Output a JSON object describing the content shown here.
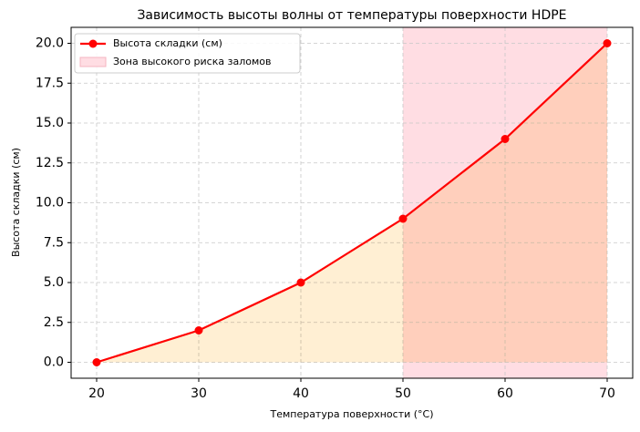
{
  "chart_data": {
    "type": "line",
    "title": "Зависимость высоты волны от температуры поверхности HDPE",
    "x_label": "Температура поверхности (°C)",
    "y_label": "Высота складки (см)",
    "x": [
      20,
      30,
      40,
      50,
      60,
      70
    ],
    "series": [
      {
        "name": "Высота складки (см)",
        "color": "#ff0000",
        "values": [
          0,
          2,
          5,
          9,
          14,
          20
        ]
      }
    ],
    "fill_under": true,
    "fill_color": "#ffe9c4",
    "highlight": {
      "xmin": 50,
      "xmax": 70,
      "label": "Зона высокого риска заломов",
      "color": "#ffdde3"
    },
    "xlim": [
      17.5,
      72.5
    ],
    "xticks": [
      20,
      30,
      40,
      50,
      60,
      70
    ],
    "ylim": [
      -1,
      21
    ],
    "yticks": [
      {
        "value": 0,
        "label": "0.0"
      },
      {
        "value": 2.5,
        "label": "2.5"
      },
      {
        "value": 5,
        "label": "5.0"
      },
      {
        "value": 7.5,
        "label": "7.5"
      },
      {
        "value": 10,
        "label": "10.0"
      },
      {
        "value": 12.5,
        "label": "12.5"
      },
      {
        "value": 15,
        "label": "15.0"
      },
      {
        "value": 17.5,
        "label": "17.5"
      },
      {
        "value": 20,
        "label": "20.0"
      }
    ],
    "grid": true,
    "legend": "upper left"
  }
}
